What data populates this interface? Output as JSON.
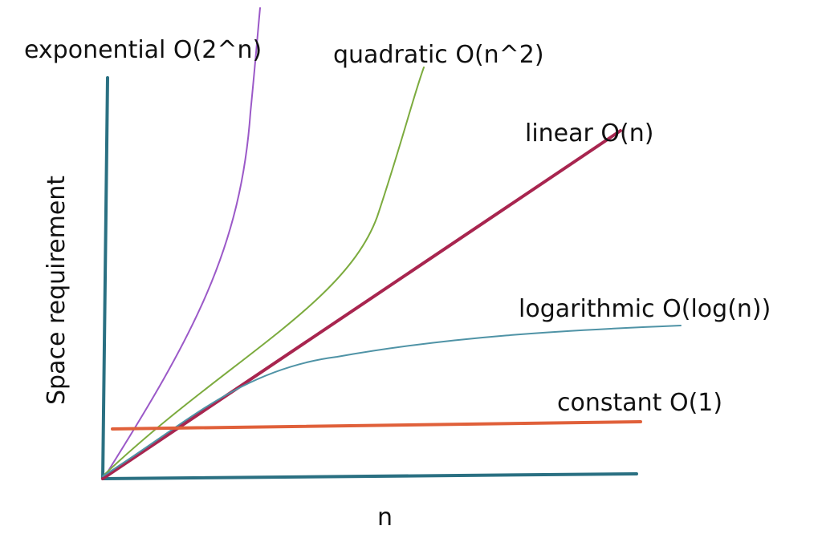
{
  "chart_data": {
    "type": "line",
    "xlabel": "n",
    "ylabel": "Space requirement",
    "grid": false,
    "legend": "none",
    "axis_color": "#2a7082",
    "series": [
      {
        "name": "exponential O(2^n)",
        "color": "#9b59c8",
        "kind": "exponential"
      },
      {
        "name": "quadratic O(n^2)",
        "color": "#7cab3e",
        "kind": "quadratic"
      },
      {
        "name": "linear O(n)",
        "color": "#a8254f",
        "kind": "linear"
      },
      {
        "name": "logarithmic O(log(n))",
        "color": "#4f93a6",
        "kind": "logarithmic"
      },
      {
        "name": "constant O(1)",
        "color": "#e0603a",
        "kind": "constant"
      }
    ]
  }
}
